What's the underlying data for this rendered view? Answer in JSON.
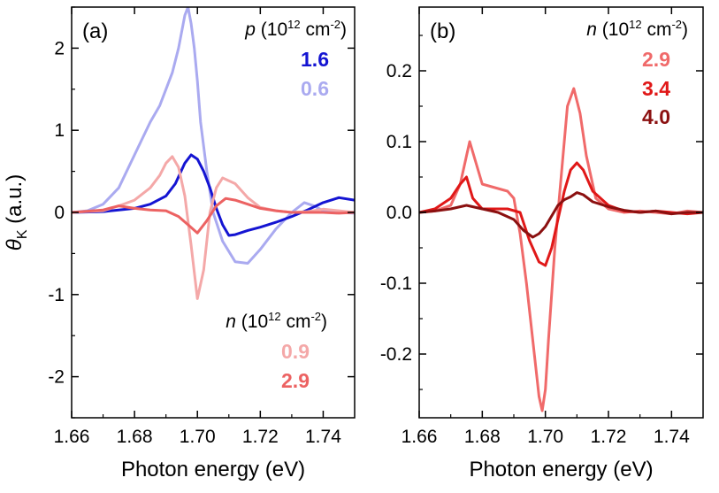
{
  "chart_data": [
    {
      "type": "line",
      "panel_label": "(a)",
      "xlabel": "Photon energy (eV)",
      "ylabel": "θK (a.u.)",
      "ylabel_parts": {
        "symbol": "θ",
        "subscript": "K",
        "rest": " (a.u.)"
      },
      "xlim": [
        1.66,
        1.75
      ],
      "ylim": [
        -2.5,
        2.5
      ],
      "xticks": [
        "1.66",
        "1.68",
        "1.70",
        "1.72",
        "1.74"
      ],
      "yticks": [
        "-2",
        "-1",
        "0",
        "1",
        "2"
      ],
      "grid": false,
      "legend_groups": [
        {
          "header_var": "p",
          "header_unit": " (10",
          "header_exp": "12",
          "header_unit2": " cm",
          "header_exp2": "-2",
          "header_close": ")",
          "placement": "top-right",
          "entries": [
            {
              "label": "1.6",
              "color": "#1414d2"
            },
            {
              "label": "0.6",
              "color": "#aaaaf0"
            }
          ]
        },
        {
          "header_var": "n",
          "header_unit": " (10",
          "header_exp": "12",
          "header_unit2": " cm",
          "header_exp2": "-2",
          "header_close": ")",
          "placement": "bottom-right",
          "entries": [
            {
              "label": "0.9",
              "color": "#f4a8a8"
            },
            {
              "label": "2.9",
              "color": "#ec6262"
            }
          ]
        }
      ],
      "series": [
        {
          "color": "#aaaaf0",
          "width": 3,
          "x": [
            1.66,
            1.665,
            1.67,
            1.675,
            1.68,
            1.685,
            1.688,
            1.69,
            1.692,
            1.694,
            1.696,
            1.697,
            1.698,
            1.699,
            1.7,
            1.701,
            1.703,
            1.705,
            1.708,
            1.712,
            1.716,
            1.72,
            1.725,
            1.73,
            1.734,
            1.737,
            1.74,
            1.745,
            1.75
          ],
          "y": [
            0,
            0.02,
            0.1,
            0.3,
            0.7,
            1.1,
            1.3,
            1.5,
            1.7,
            2.0,
            2.4,
            2.5,
            2.3,
            2.0,
            1.6,
            1.1,
            0.5,
            0,
            -0.35,
            -0.6,
            -0.62,
            -0.45,
            -0.2,
            0,
            0.12,
            0.08,
            0.02,
            0,
            -0.01
          ]
        },
        {
          "color": "#1414d2",
          "width": 3,
          "x": [
            1.66,
            1.67,
            1.675,
            1.68,
            1.685,
            1.69,
            1.693,
            1.696,
            1.698,
            1.7,
            1.702,
            1.704,
            1.706,
            1.708,
            1.71,
            1.712,
            1.716,
            1.72,
            1.725,
            1.73,
            1.735,
            1.74,
            1.745,
            1.75
          ],
          "y": [
            0,
            0.01,
            0.03,
            0.05,
            0.1,
            0.2,
            0.35,
            0.6,
            0.7,
            0.65,
            0.5,
            0.3,
            0.05,
            -0.15,
            -0.28,
            -0.27,
            -0.22,
            -0.18,
            -0.12,
            -0.05,
            0.03,
            0.12,
            0.18,
            0.15
          ]
        },
        {
          "color": "#f4a8a8",
          "width": 3,
          "x": [
            1.66,
            1.67,
            1.675,
            1.68,
            1.685,
            1.688,
            1.69,
            1.692,
            1.694,
            1.696,
            1.698,
            1.7,
            1.702,
            1.704,
            1.706,
            1.708,
            1.712,
            1.716,
            1.72,
            1.725,
            1.73,
            1.735,
            1.74,
            1.745,
            1.75
          ],
          "y": [
            0,
            0.02,
            0.08,
            0.15,
            0.3,
            0.45,
            0.6,
            0.68,
            0.55,
            0.2,
            -0.4,
            -1.05,
            -0.7,
            0,
            0.3,
            0.42,
            0.35,
            0.18,
            0.06,
            0.02,
            0,
            0.01,
            0.04,
            0.02,
            0
          ]
        },
        {
          "color": "#ec6262",
          "width": 3,
          "x": [
            1.66,
            1.67,
            1.675,
            1.68,
            1.685,
            1.69,
            1.694,
            1.697,
            1.7,
            1.703,
            1.706,
            1.709,
            1.712,
            1.716,
            1.72,
            1.725,
            1.73,
            1.735,
            1.74,
            1.745,
            1.75
          ],
          "y": [
            0,
            0.03,
            0.08,
            0.05,
            0.03,
            0.02,
            -0.05,
            -0.15,
            -0.25,
            -0.1,
            0.08,
            0.17,
            0.15,
            0.1,
            0.05,
            0.02,
            0,
            0,
            0,
            -0.01,
            0
          ]
        }
      ]
    },
    {
      "type": "line",
      "panel_label": "(b)",
      "xlabel": "Photon energy (eV)",
      "xlim": [
        1.66,
        1.75
      ],
      "ylim": [
        -0.29,
        0.29
      ],
      "xticks": [
        "1.66",
        "1.68",
        "1.70",
        "1.72",
        "1.74"
      ],
      "yticks": [
        "-0.2",
        "-0.1",
        "0.0",
        "0.1",
        "0.2"
      ],
      "grid": false,
      "legend_groups": [
        {
          "header_var": "n",
          "header_unit": " (10",
          "header_exp": "12",
          "header_unit2": " cm",
          "header_exp2": "-2",
          "header_close": ")",
          "placement": "top-right",
          "entries": [
            {
              "label": "2.9",
              "color": "#f06a6a"
            },
            {
              "label": "3.4",
              "color": "#e01818"
            },
            {
              "label": "4.0",
              "color": "#8b1010"
            }
          ]
        }
      ],
      "series": [
        {
          "color": "#f06a6a",
          "width": 3,
          "x": [
            1.66,
            1.665,
            1.67,
            1.673,
            1.675,
            1.676,
            1.678,
            1.68,
            1.684,
            1.688,
            1.69,
            1.692,
            1.694,
            1.696,
            1.698,
            1.699,
            1.7,
            1.701,
            1.703,
            1.705,
            1.707,
            1.709,
            1.711,
            1.713,
            1.716,
            1.72,
            1.725,
            1.73,
            1.735,
            1.74,
            1.745,
            1.75
          ],
          "y": [
            0,
            0.002,
            0.01,
            0.04,
            0.08,
            0.1,
            0.07,
            0.04,
            0.035,
            0.03,
            0.02,
            -0.03,
            -0.1,
            -0.18,
            -0.26,
            -0.28,
            -0.25,
            -0.18,
            -0.05,
            0.05,
            0.15,
            0.175,
            0.14,
            0.08,
            0.02,
            0.005,
            0,
            0.002,
            0,
            -0.002,
            0.002,
            0
          ]
        },
        {
          "color": "#e01818",
          "width": 3,
          "x": [
            1.66,
            1.665,
            1.67,
            1.673,
            1.675,
            1.677,
            1.68,
            1.684,
            1.688,
            1.692,
            1.695,
            1.698,
            1.7,
            1.702,
            1.704,
            1.706,
            1.708,
            1.71,
            1.712,
            1.715,
            1.72,
            1.725,
            1.73,
            1.735,
            1.74,
            1.745,
            1.75
          ],
          "y": [
            0,
            0.005,
            0.02,
            0.04,
            0.05,
            0.02,
            0.005,
            0.005,
            0.005,
            0,
            -0.04,
            -0.07,
            -0.075,
            -0.05,
            -0.01,
            0.03,
            0.06,
            0.07,
            0.06,
            0.03,
            0.01,
            0.002,
            0,
            0.002,
            0,
            -0.002,
            0
          ]
        },
        {
          "color": "#8b1010",
          "width": 3,
          "x": [
            1.66,
            1.665,
            1.67,
            1.675,
            1.68,
            1.685,
            1.69,
            1.693,
            1.696,
            1.698,
            1.7,
            1.702,
            1.704,
            1.706,
            1.708,
            1.71,
            1.712,
            1.715,
            1.72,
            1.725,
            1.73,
            1.735,
            1.74,
            1.745,
            1.75
          ],
          "y": [
            0,
            0.002,
            0.005,
            0.01,
            0.005,
            0,
            -0.01,
            -0.025,
            -0.035,
            -0.03,
            -0.02,
            -0.005,
            0.01,
            0.018,
            0.022,
            0.028,
            0.025,
            0.015,
            0.008,
            0.003,
            0,
            0.002,
            -0.002,
            0,
            0
          ]
        }
      ]
    }
  ]
}
